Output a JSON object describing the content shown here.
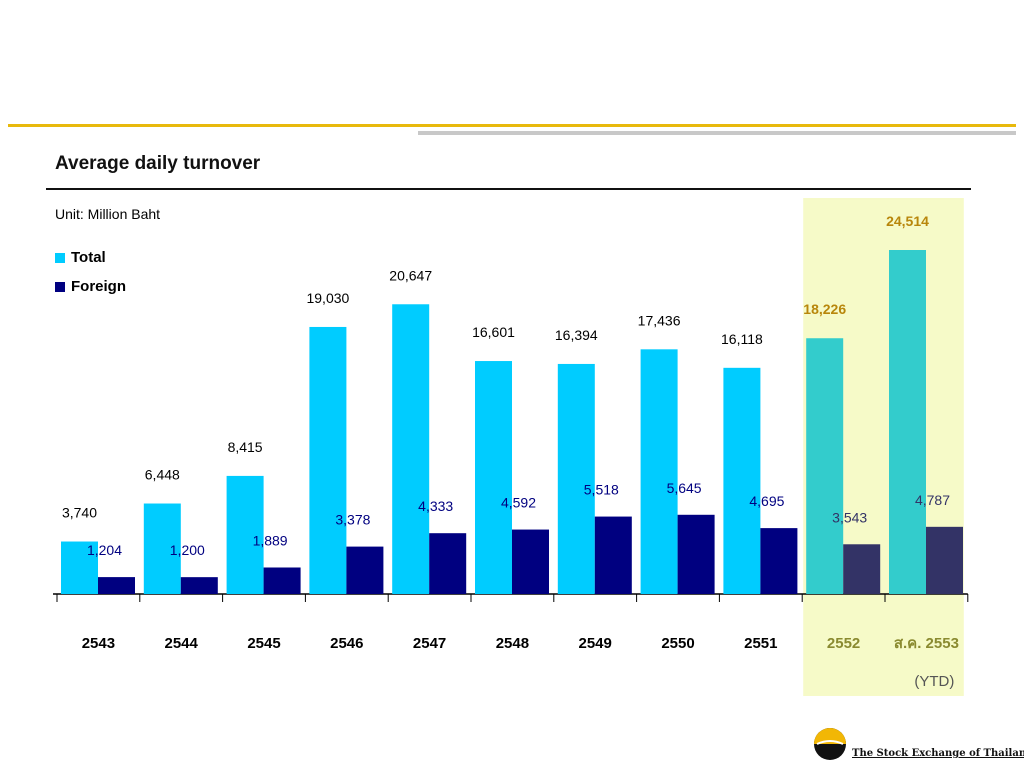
{
  "slide_title": "",
  "chart_data": {
    "type": "bar",
    "title": "Average daily turnover",
    "unit_label": "Unit: Million Baht",
    "categories": [
      "2543",
      "2544",
      "2545",
      "2546",
      "2547",
      "2548",
      "2549",
      "2550",
      "2551",
      "2552",
      "ส.ค. 2553"
    ],
    "series": [
      {
        "name": "Total",
        "color": "#00CCFF",
        "highlight_color": "#33CCCC",
        "values": [
          3740,
          6448,
          8415,
          19030,
          20647,
          16601,
          16394,
          17436,
          16118,
          18226,
          24514
        ],
        "labels": [
          "3,740",
          "6,448",
          "8,415",
          "19,030",
          "20,647",
          "16,601",
          "16,394",
          "17,436",
          "16,118",
          "18,226",
          "24,514"
        ]
      },
      {
        "name": "Foreign",
        "color": "#000080",
        "highlight_color": "#333366",
        "values": [
          1204,
          1200,
          1889,
          3378,
          4333,
          4592,
          5518,
          5645,
          4695,
          3543,
          4787
        ],
        "labels": [
          "1,204",
          "1,200",
          "1,889",
          "3,378",
          "4,333",
          "4,592",
          "5,518",
          "5,645",
          "4,695",
          "3,543",
          "4,787"
        ]
      }
    ],
    "ylim": [
      0,
      25000
    ],
    "highlight_from_index": 9,
    "highlight_color": "#F6FAC8",
    "ytd_note": "(YTD)",
    "grid": false,
    "legend_position": "top-left"
  },
  "footnotes": {
    "source": "",
    "note": ""
  },
  "logo": {
    "name_thai": "",
    "name_en": "The Stock Exchange of Thailand",
    "mark": "set-logo-icon"
  }
}
